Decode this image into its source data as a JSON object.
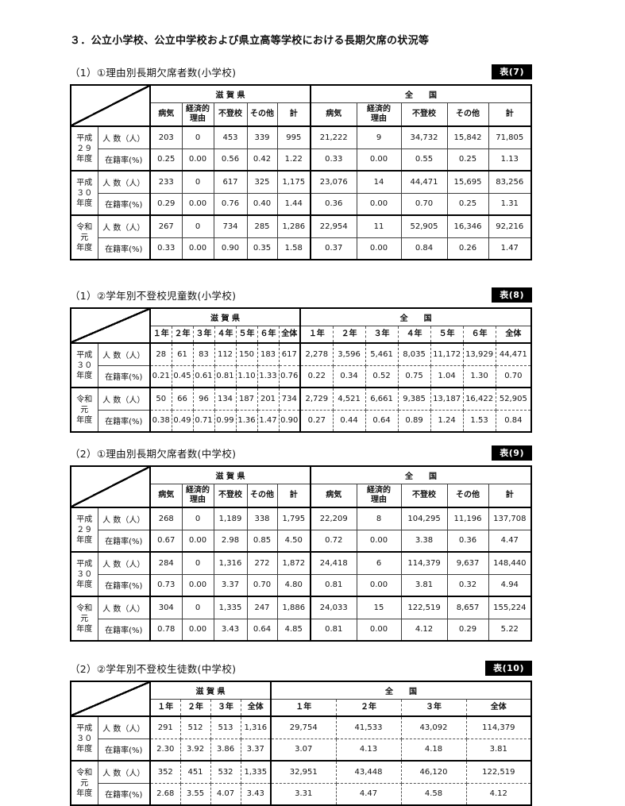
{
  "page_title": "３．公立小学校、公立中学校および県立高等学校における長期欠席の状況等",
  "regions": [
    "滋 賀 県",
    "全　　国"
  ],
  "metrics": {
    "count": "人 数（人）",
    "rate": "在籍率(%)"
  },
  "tables": [
    {
      "caption": "（1）①理由別長期欠席者数(小学校)",
      "badge": "表(7)",
      "layout": "reason",
      "columns": [
        "病気",
        "経済的\n理由",
        "不登校",
        "その他",
        "計"
      ],
      "groups": [
        {
          "year": "平成\n２９\n年度",
          "count": [
            "203",
            "0",
            "453",
            "339",
            "995",
            "21,222",
            "9",
            "34,732",
            "15,842",
            "71,805"
          ],
          "rate": [
            "0.25",
            "0.00",
            "0.56",
            "0.42",
            "1.22",
            "0.33",
            "0.00",
            "0.55",
            "0.25",
            "1.13"
          ]
        },
        {
          "year": "平成\n３０\n年度",
          "count": [
            "233",
            "0",
            "617",
            "325",
            "1,175",
            "23,076",
            "14",
            "44,471",
            "15,695",
            "83,256"
          ],
          "rate": [
            "0.29",
            "0.00",
            "0.76",
            "0.40",
            "1.44",
            "0.36",
            "0.00",
            "0.70",
            "0.25",
            "1.31"
          ]
        },
        {
          "year": "令和\n元\n年度",
          "count": [
            "267",
            "0",
            "734",
            "285",
            "1,286",
            "22,954",
            "11",
            "52,905",
            "16,346",
            "92,216"
          ],
          "rate": [
            "0.33",
            "0.00",
            "0.90",
            "0.35",
            "1.58",
            "0.37",
            "0.00",
            "0.84",
            "0.26",
            "1.47"
          ]
        }
      ]
    },
    {
      "caption": "（1）②学年別不登校児童数(小学校)",
      "badge": "表(8)",
      "layout": "grade6",
      "columns": [
        "１年",
        "２年",
        "３年",
        "４年",
        "５年",
        "６年",
        "全体"
      ],
      "groups": [
        {
          "year": "平成\n３０\n年度",
          "count": [
            "28",
            "61",
            "83",
            "112",
            "150",
            "183",
            "617",
            "2,278",
            "3,596",
            "5,461",
            "8,035",
            "11,172",
            "13,929",
            "44,471"
          ],
          "rate": [
            "0.21",
            "0.45",
            "0.61",
            "0.81",
            "1.10",
            "1.33",
            "0.76",
            "0.22",
            "0.34",
            "0.52",
            "0.75",
            "1.04",
            "1.30",
            "0.70"
          ]
        },
        {
          "year": "令和\n元\n年度",
          "count": [
            "50",
            "66",
            "96",
            "134",
            "187",
            "201",
            "734",
            "2,729",
            "4,521",
            "6,661",
            "9,385",
            "13,187",
            "16,422",
            "52,905"
          ],
          "rate": [
            "0.38",
            "0.49",
            "0.71",
            "0.99",
            "1.36",
            "1.47",
            "0.90",
            "0.27",
            "0.44",
            "0.64",
            "0.89",
            "1.24",
            "1.53",
            "0.84"
          ]
        }
      ]
    },
    {
      "caption": "（2）①理由別長期欠席者数(中学校)",
      "badge": "表(9)",
      "layout": "reason",
      "columns": [
        "病気",
        "経済的\n理由",
        "不登校",
        "その他",
        "計"
      ],
      "groups": [
        {
          "year": "平成\n２９\n年度",
          "count": [
            "268",
            "0",
            "1,189",
            "338",
            "1,795",
            "22,209",
            "8",
            "104,295",
            "11,196",
            "137,708"
          ],
          "rate": [
            "0.67",
            "0.00",
            "2.98",
            "0.85",
            "4.50",
            "0.72",
            "0.00",
            "3.38",
            "0.36",
            "4.47"
          ]
        },
        {
          "year": "平成\n３０\n年度",
          "count": [
            "284",
            "0",
            "1,316",
            "272",
            "1,872",
            "24,418",
            "6",
            "114,379",
            "9,637",
            "148,440"
          ],
          "rate": [
            "0.73",
            "0.00",
            "3.37",
            "0.70",
            "4.80",
            "0.81",
            "0.00",
            "3.81",
            "0.32",
            "4.94"
          ]
        },
        {
          "year": "令和\n元\n年度",
          "count": [
            "304",
            "0",
            "1,335",
            "247",
            "1,886",
            "24,033",
            "15",
            "122,519",
            "8,657",
            "155,224"
          ],
          "rate": [
            "0.78",
            "0.00",
            "3.43",
            "0.64",
            "4.85",
            "0.81",
            "0.00",
            "4.12",
            "0.29",
            "5.22"
          ]
        }
      ]
    },
    {
      "caption": "（2）②学年別不登校生徒数(中学校)",
      "badge": "表(10)",
      "layout": "grade3",
      "columns": [
        "１年",
        "２年",
        "３年",
        "全体"
      ],
      "groups": [
        {
          "year": "平成\n３０\n年度",
          "count": [
            "291",
            "512",
            "513",
            "1,316",
            "29,754",
            "41,533",
            "43,092",
            "114,379"
          ],
          "rate": [
            "2.30",
            "3.92",
            "3.86",
            "3.37",
            "3.07",
            "4.13",
            "4.18",
            "3.81"
          ]
        },
        {
          "year": "令和\n元\n年度",
          "count": [
            "352",
            "451",
            "532",
            "1,335",
            "32,951",
            "43,448",
            "46,120",
            "122,519"
          ],
          "rate": [
            "2.68",
            "3.55",
            "4.07",
            "3.43",
            "3.31",
            "4.47",
            "4.58",
            "4.12"
          ]
        }
      ]
    }
  ]
}
